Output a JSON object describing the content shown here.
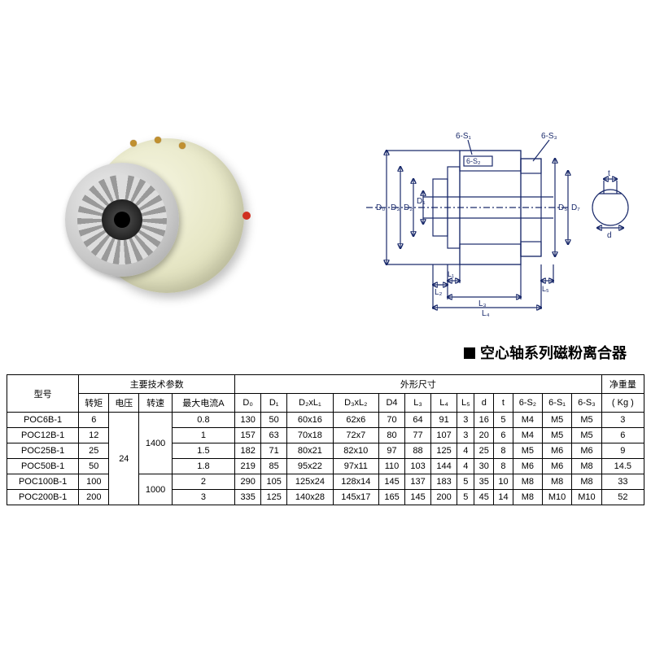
{
  "series_title": "空心轴系列磁粉离合器",
  "schematic_labels": {
    "s1": "6-S₁",
    "s2": "6-S₂",
    "s3": "6-S₃",
    "D0": "D₀",
    "D1": "D₁",
    "D2": "D₂",
    "D3": "D₃",
    "D5": "D₅",
    "D7": "D₇",
    "L1": "L₁",
    "L2": "L₂",
    "L3": "L₃",
    "L4": "L₄",
    "L5": "L₅",
    "t": "t",
    "d": "d"
  },
  "table": {
    "group_headers": {
      "model": "型号",
      "tech": "主要技术参数",
      "dims": "外形尺寸",
      "weight": "净重量"
    },
    "sub_headers": [
      "转矩",
      "电压",
      "转速",
      "最大电流A",
      "D₀",
      "D₁",
      "D₂xL₁",
      "D₃xL₂",
      "D4",
      "L₃",
      "L₄",
      "L₅",
      "d",
      "t",
      "6-S₂",
      "6-S₁",
      "6-S₃",
      "( Kg )"
    ],
    "rows": [
      {
        "model": "POC6B-1",
        "torque": "6",
        "volt": "24",
        "speed": "1400",
        "curr": "0.8",
        "D0": "130",
        "D1": "50",
        "D2L1": "60x16",
        "D3L2": "62x6",
        "D4": "70",
        "L3": "64",
        "L4": "91",
        "L5": "3",
        "d": "16",
        "t": "5",
        "S2": "M4",
        "S1": "M5",
        "S3": "M5",
        "kg": "3"
      },
      {
        "model": "POC12B-1",
        "torque": "12",
        "volt": "",
        "speed": "",
        "curr": "1",
        "D0": "157",
        "D1": "63",
        "D2L1": "70x18",
        "D3L2": "72x7",
        "D4": "80",
        "L3": "77",
        "L4": "107",
        "L5": "3",
        "d": "20",
        "t": "6",
        "S2": "M4",
        "S1": "M5",
        "S3": "M5",
        "kg": "6"
      },
      {
        "model": "POC25B-1",
        "torque": "25",
        "volt": "",
        "speed": "",
        "curr": "1.5",
        "D0": "182",
        "D1": "71",
        "D2L1": "80x21",
        "D3L2": "82x10",
        "D4": "97",
        "L3": "88",
        "L4": "125",
        "L5": "4",
        "d": "25",
        "t": "8",
        "S2": "M5",
        "S1": "M6",
        "S3": "M6",
        "kg": "9"
      },
      {
        "model": "POC50B-1",
        "torque": "50",
        "volt": "",
        "speed": "",
        "curr": "1.8",
        "D0": "219",
        "D1": "85",
        "D2L1": "95x22",
        "D3L2": "97x11",
        "D4": "110",
        "L3": "103",
        "L4": "144",
        "L5": "4",
        "d": "30",
        "t": "8",
        "S2": "M6",
        "S1": "M6",
        "S3": "M8",
        "kg": "14.5"
      },
      {
        "model": "POC100B-1",
        "torque": "100",
        "volt": "",
        "speed": "1000",
        "curr": "2",
        "D0": "290",
        "D1": "105",
        "D2L1": "125x24",
        "D3L2": "128x14",
        "D4": "145",
        "L3": "137",
        "L4": "183",
        "L5": "5",
        "d": "35",
        "t": "10",
        "S2": "M8",
        "S1": "M8",
        "S3": "M8",
        "kg": "33"
      },
      {
        "model": "POC200B-1",
        "torque": "200",
        "volt": "",
        "speed": "",
        "curr": "3",
        "D0": "335",
        "D1": "125",
        "D2L1": "140x28",
        "D3L2": "145x17",
        "D4": "165",
        "L3": "145",
        "L4": "200",
        "L5": "5",
        "d": "45",
        "t": "14",
        "S2": "M8",
        "S1": "M10",
        "S3": "M10",
        "kg": "52"
      }
    ],
    "merged": {
      "volt_value": "24",
      "speed1": "1400",
      "speed2": "1000"
    }
  },
  "colors": {
    "schematic_stroke": "#1a2a6b",
    "table_border": "#000000",
    "clutch_body": "#e8e8c8",
    "bolt": "#c09030",
    "red": "#d03020"
  }
}
